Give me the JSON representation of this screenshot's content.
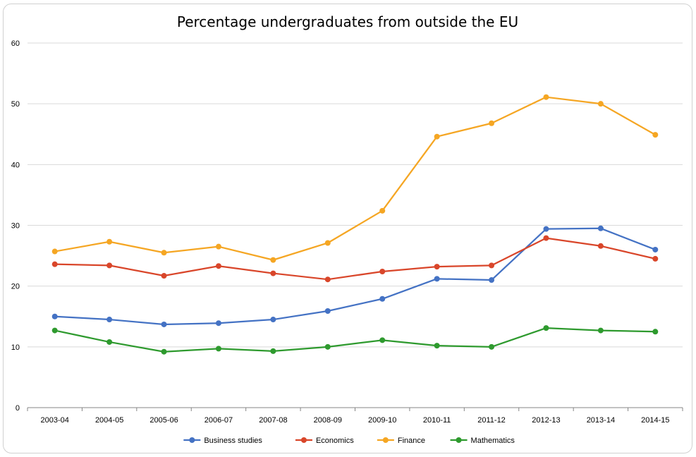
{
  "chart_data": {
    "type": "line",
    "title": "Percentage undergraduates from outside the EU",
    "xlabel": "",
    "ylabel": "",
    "categories": [
      "2003-04",
      "2004-05",
      "2005-06",
      "2006-07",
      "2007-08",
      "2008-09",
      "2009-10",
      "2010-11",
      "2011-12",
      "2012-13",
      "2013-14",
      "2014-15"
    ],
    "ylim": [
      0,
      60
    ],
    "yticks": [
      0,
      10,
      20,
      30,
      40,
      50,
      60
    ],
    "grid": true,
    "legend_position": "bottom",
    "series": [
      {
        "name": "Business studies",
        "color": "#4472C4",
        "values": [
          15.0,
          14.5,
          13.7,
          13.9,
          14.5,
          15.9,
          17.9,
          21.2,
          21.0,
          29.4,
          29.5,
          26.0
        ]
      },
      {
        "name": "Economics",
        "color": "#D9462A",
        "values": [
          23.6,
          23.4,
          21.7,
          23.3,
          22.1,
          21.1,
          22.4,
          23.2,
          23.4,
          27.9,
          26.6,
          24.5
        ]
      },
      {
        "name": "Finance",
        "color": "#F5A623",
        "values": [
          25.7,
          27.3,
          25.5,
          26.5,
          24.3,
          27.1,
          32.4,
          44.6,
          46.8,
          51.1,
          50.0,
          44.9
        ]
      },
      {
        "name": "Mathematics",
        "color": "#2E9A2E",
        "values": [
          12.7,
          10.8,
          9.2,
          9.7,
          9.3,
          10.0,
          11.1,
          10.2,
          10.0,
          13.1,
          12.7,
          12.5
        ]
      }
    ]
  }
}
